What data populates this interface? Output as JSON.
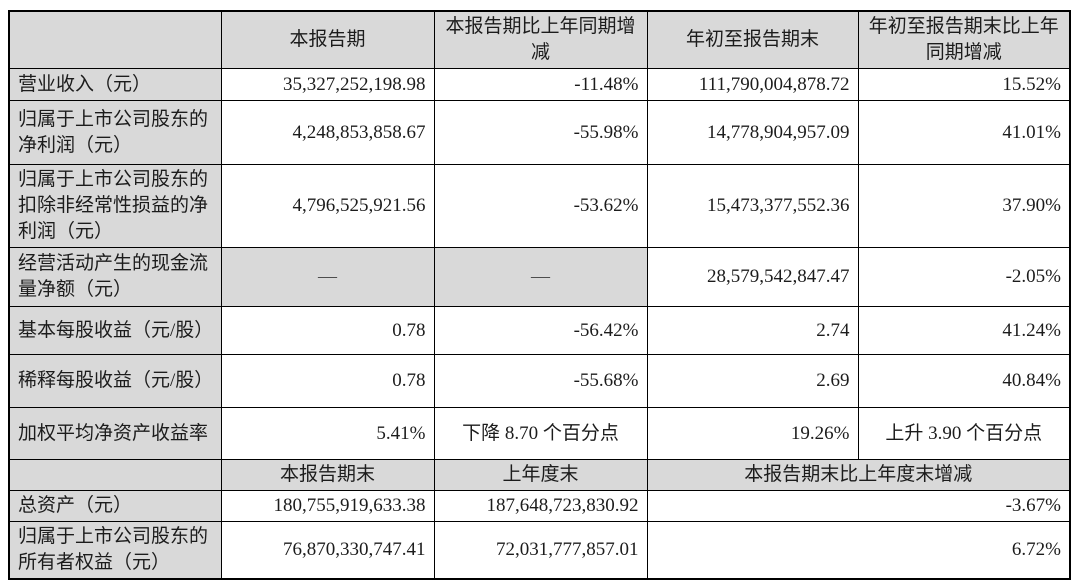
{
  "colors": {
    "shade": "#d9d9d9",
    "grid": "#000000",
    "text": "#1c1c1c"
  },
  "table": {
    "section1": {
      "headers": [
        "",
        "本报告期",
        "本报告期比上年同期增减",
        "年初至报告期末",
        "年初至报告期末比上年同期增减"
      ],
      "rows": [
        {
          "label": "营业收入（元）",
          "values": [
            "35,327,252,198.98",
            "-11.48%",
            "111,790,004,878.72",
            "15.52%"
          ]
        },
        {
          "label": "归属于上市公司股东的净利润（元）",
          "values": [
            "4,248,853,858.67",
            "-55.98%",
            "14,778,904,957.09",
            "41.01%"
          ]
        },
        {
          "label": "归属于上市公司股东的扣除非经常性损益的净利润（元）",
          "values": [
            "4,796,525,921.56",
            "-53.62%",
            "15,473,377,552.36",
            "37.90%"
          ]
        },
        {
          "label": "经营活动产生的现金流量净额（元）",
          "values": [
            "—",
            "—",
            "28,579,542,847.47",
            "-2.05%"
          ]
        },
        {
          "label": "基本每股收益（元/股）",
          "values": [
            "0.78",
            "-56.42%",
            "2.74",
            "41.24%"
          ]
        },
        {
          "label": "稀释每股收益（元/股）",
          "values": [
            "0.78",
            "-55.68%",
            "2.69",
            "40.84%"
          ]
        },
        {
          "label": "加权平均净资产收益率",
          "values": [
            "5.41%",
            "下降 8.70 个百分点",
            "19.26%",
            "上升 3.90 个百分点"
          ]
        }
      ]
    },
    "section2": {
      "headers": [
        "",
        "本报告期末",
        "上年度末",
        "本报告期末比上年度末增减"
      ],
      "rows": [
        {
          "label": "总资产（元）",
          "values": [
            "180,755,919,633.38",
            "187,648,723,830.92",
            "-3.67%"
          ]
        },
        {
          "label": "归属于上市公司股东的所有者权益（元）",
          "values": [
            "76,870,330,747.41",
            "72,031,777,857.01",
            "6.72%"
          ]
        }
      ]
    }
  }
}
